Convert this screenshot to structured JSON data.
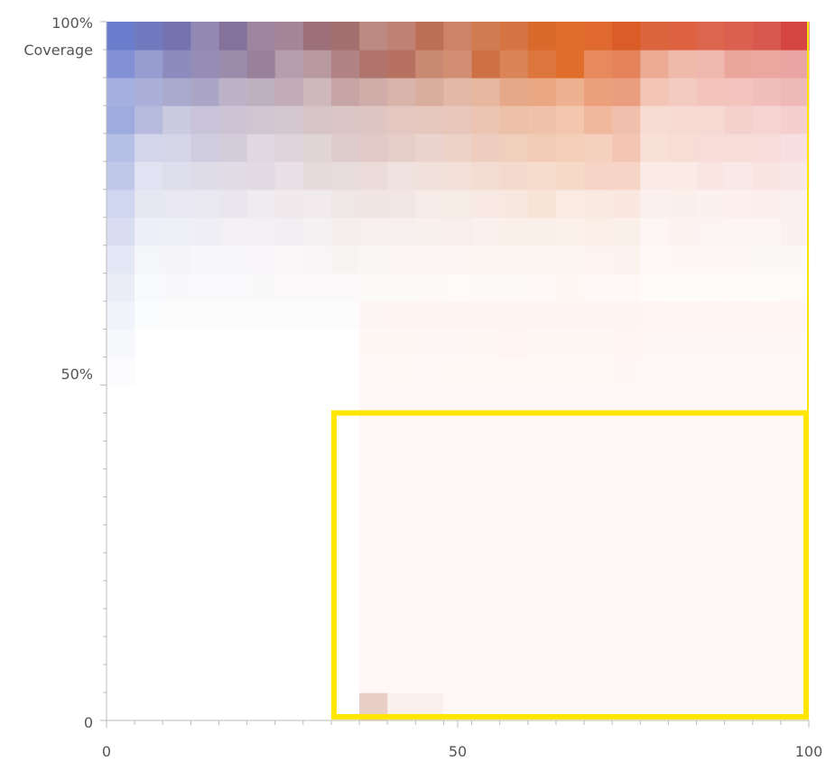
{
  "chart_data": {
    "type": "heatmap",
    "x_axis": {
      "range": [
        0,
        100
      ],
      "tick_labels": [
        "0",
        "50",
        "100"
      ],
      "tick_values": [
        0,
        50,
        100
      ]
    },
    "y_axis": {
      "range": [
        0,
        100
      ],
      "tick_labels": [
        "0",
        "50%",
        "100%"
      ],
      "tick_values": [
        0,
        50,
        100
      ],
      "label": "Coverage"
    },
    "grid": {
      "columns": 25,
      "rows": 25,
      "cell_width": 4,
      "cell_height": 4
    },
    "color_scale": {
      "low": "#5b75d0",
      "mid": "#e06a24",
      "high": "#d03232",
      "background": "#ffffff"
    },
    "highlight_region": {
      "x_range": [
        32,
        100
      ],
      "y_range": [
        0,
        44
      ],
      "color": "#ffe600"
    }
  }
}
